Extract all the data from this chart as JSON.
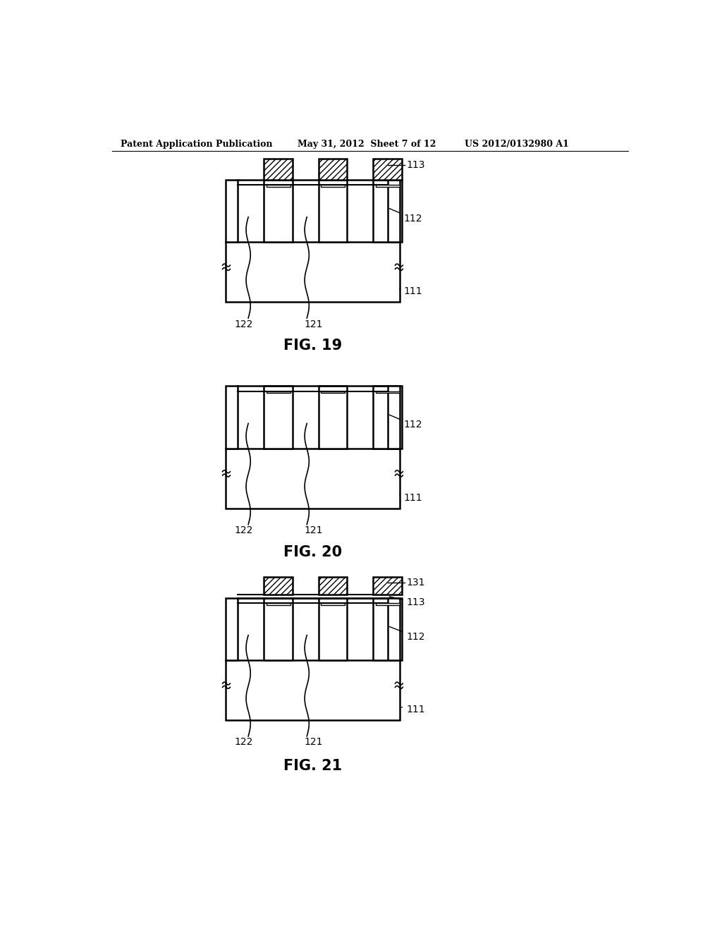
{
  "bg_color": "#ffffff",
  "header_left": "Patent Application Publication",
  "header_mid": "May 31, 2012  Sheet 7 of 12",
  "header_right": "US 2012/0132980 A1",
  "fig19_title": "FIG. 19",
  "fig20_title": "FIG. 20",
  "fig21_title": "FIG. 21",
  "label_111": "111",
  "label_112": "112",
  "label_113": "113",
  "label_121": "121",
  "label_122": "122",
  "label_131": "131",
  "black": "#000000",
  "white": "#ffffff"
}
